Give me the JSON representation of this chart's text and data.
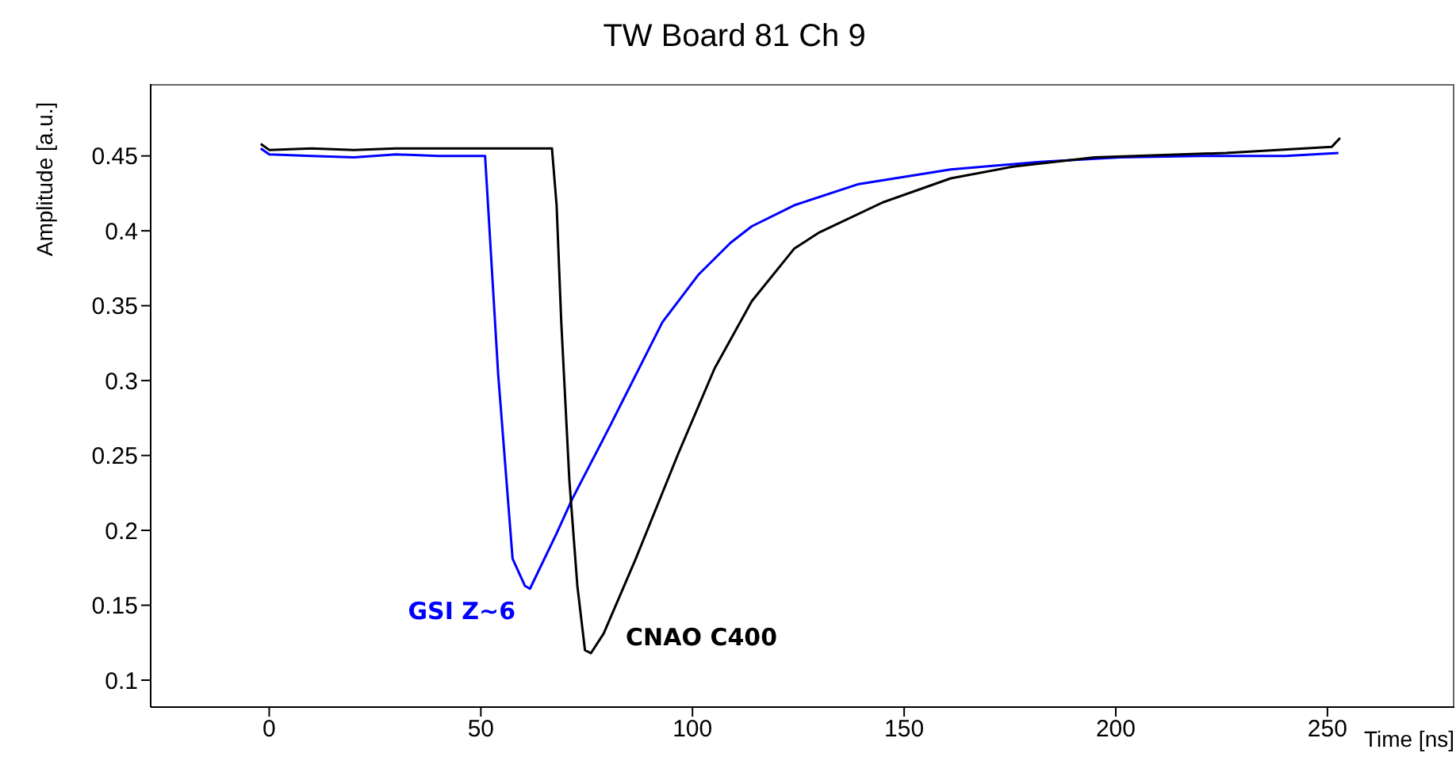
{
  "chart_data": {
    "type": "line",
    "title": "TW Board 81 Ch 9",
    "xlabel": "Time [ns]",
    "ylabel": "Amplitude [a.u.]",
    "xlim": [
      -28,
      280
    ],
    "ylim": [
      0.082,
      0.498
    ],
    "xticks": [
      0,
      50,
      100,
      150,
      200,
      250
    ],
    "yticks": [
      0.1,
      0.15,
      0.2,
      0.25,
      0.3,
      0.35,
      0.4,
      0.45
    ],
    "marker": "none",
    "line_style": "solid",
    "series": [
      {
        "name": "GSI Z~6",
        "color": "#0000ff",
        "x": [
          -2,
          0,
          10,
          20,
          30,
          40,
          51,
          54.1,
          57.5,
          60.4,
          61.6,
          67.9,
          71.6,
          80.2,
          92.9,
          101.5,
          109,
          114,
          124,
          139,
          161,
          182,
          201,
          220,
          240,
          252.6
        ],
        "values": [
          0.455,
          0.451,
          0.45,
          0.449,
          0.451,
          0.45,
          0.45,
          0.304,
          0.181,
          0.163,
          0.161,
          0.198,
          0.221,
          0.268,
          0.339,
          0.371,
          0.392,
          0.403,
          0.417,
          0.431,
          0.441,
          0.446,
          0.449,
          0.45,
          0.45,
          0.452
        ]
      },
      {
        "name": "CNAO C400",
        "color": "#000000",
        "x": [
          -2,
          0,
          10,
          20,
          30,
          40,
          50,
          60,
          66.8,
          67.9,
          69,
          70.9,
          72.8,
          74.6,
          76,
          79,
          86.6,
          96.6,
          105.2,
          114,
          124,
          130,
          145,
          161,
          176,
          195,
          226,
          251,
          253
        ],
        "values": [
          0.458,
          0.454,
          0.455,
          0.454,
          0.455,
          0.455,
          0.455,
          0.455,
          0.455,
          0.417,
          0.339,
          0.234,
          0.163,
          0.12,
          0.118,
          0.131,
          0.181,
          0.251,
          0.308,
          0.353,
          0.388,
          0.399,
          0.419,
          0.435,
          0.443,
          0.449,
          0.452,
          0.456,
          0.462
        ]
      }
    ]
  }
}
